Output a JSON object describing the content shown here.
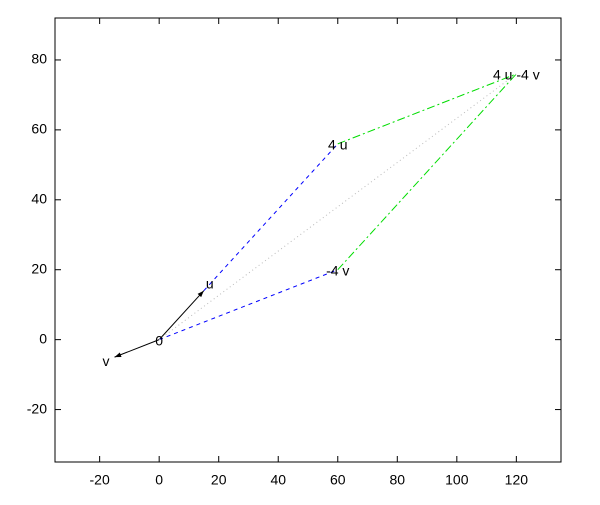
{
  "chart_data": {
    "type": "segments",
    "xlim": [
      -35,
      135
    ],
    "ylim": [
      -35,
      92
    ],
    "xticks": [
      -20,
      0,
      20,
      40,
      60,
      80,
      100,
      120
    ],
    "yticks": [
      -20,
      0,
      20,
      40,
      60,
      80
    ],
    "segments": [
      {
        "x": [
          0,
          15
        ],
        "y": [
          0,
          14
        ],
        "color": "#000000",
        "dash": "solid",
        "arrow": true
      },
      {
        "x": [
          0,
          -15
        ],
        "y": [
          0,
          -5
        ],
        "color": "#000000",
        "dash": "solid",
        "arrow": true
      },
      {
        "x": [
          15,
          60
        ],
        "y": [
          14,
          56
        ],
        "color": "#0000ff",
        "dash": "dashed",
        "arrow": false
      },
      {
        "x": [
          0,
          60
        ],
        "y": [
          0,
          20
        ],
        "color": "#0000ff",
        "dash": "dashed",
        "arrow": false
      },
      {
        "x": [
          60,
          120
        ],
        "y": [
          56,
          76
        ],
        "color": "#00dd00",
        "dash": "dashdot",
        "arrow": false
      },
      {
        "x": [
          60,
          120
        ],
        "y": [
          20,
          76
        ],
        "color": "#00dd00",
        "dash": "dashdot",
        "arrow": false
      },
      {
        "x": [
          0,
          120
        ],
        "y": [
          0,
          76
        ],
        "color": "#bbbbbb",
        "dash": "dotted",
        "arrow": false
      }
    ],
    "annotations": [
      {
        "text": "0",
        "x": 0,
        "y": 0,
        "align": "center"
      },
      {
        "text": "u",
        "x": 15,
        "y": 14,
        "align": "left"
      },
      {
        "text": "v",
        "x": -15,
        "y": -5,
        "align": "right"
      },
      {
        "text": "4 u",
        "x": 60,
        "y": 56,
        "align": "center"
      },
      {
        "text": "-4 v",
        "x": 60,
        "y": 20,
        "align": "center"
      },
      {
        "text": "4 u -4 v",
        "x": 120,
        "y": 76,
        "align": "center"
      }
    ]
  }
}
